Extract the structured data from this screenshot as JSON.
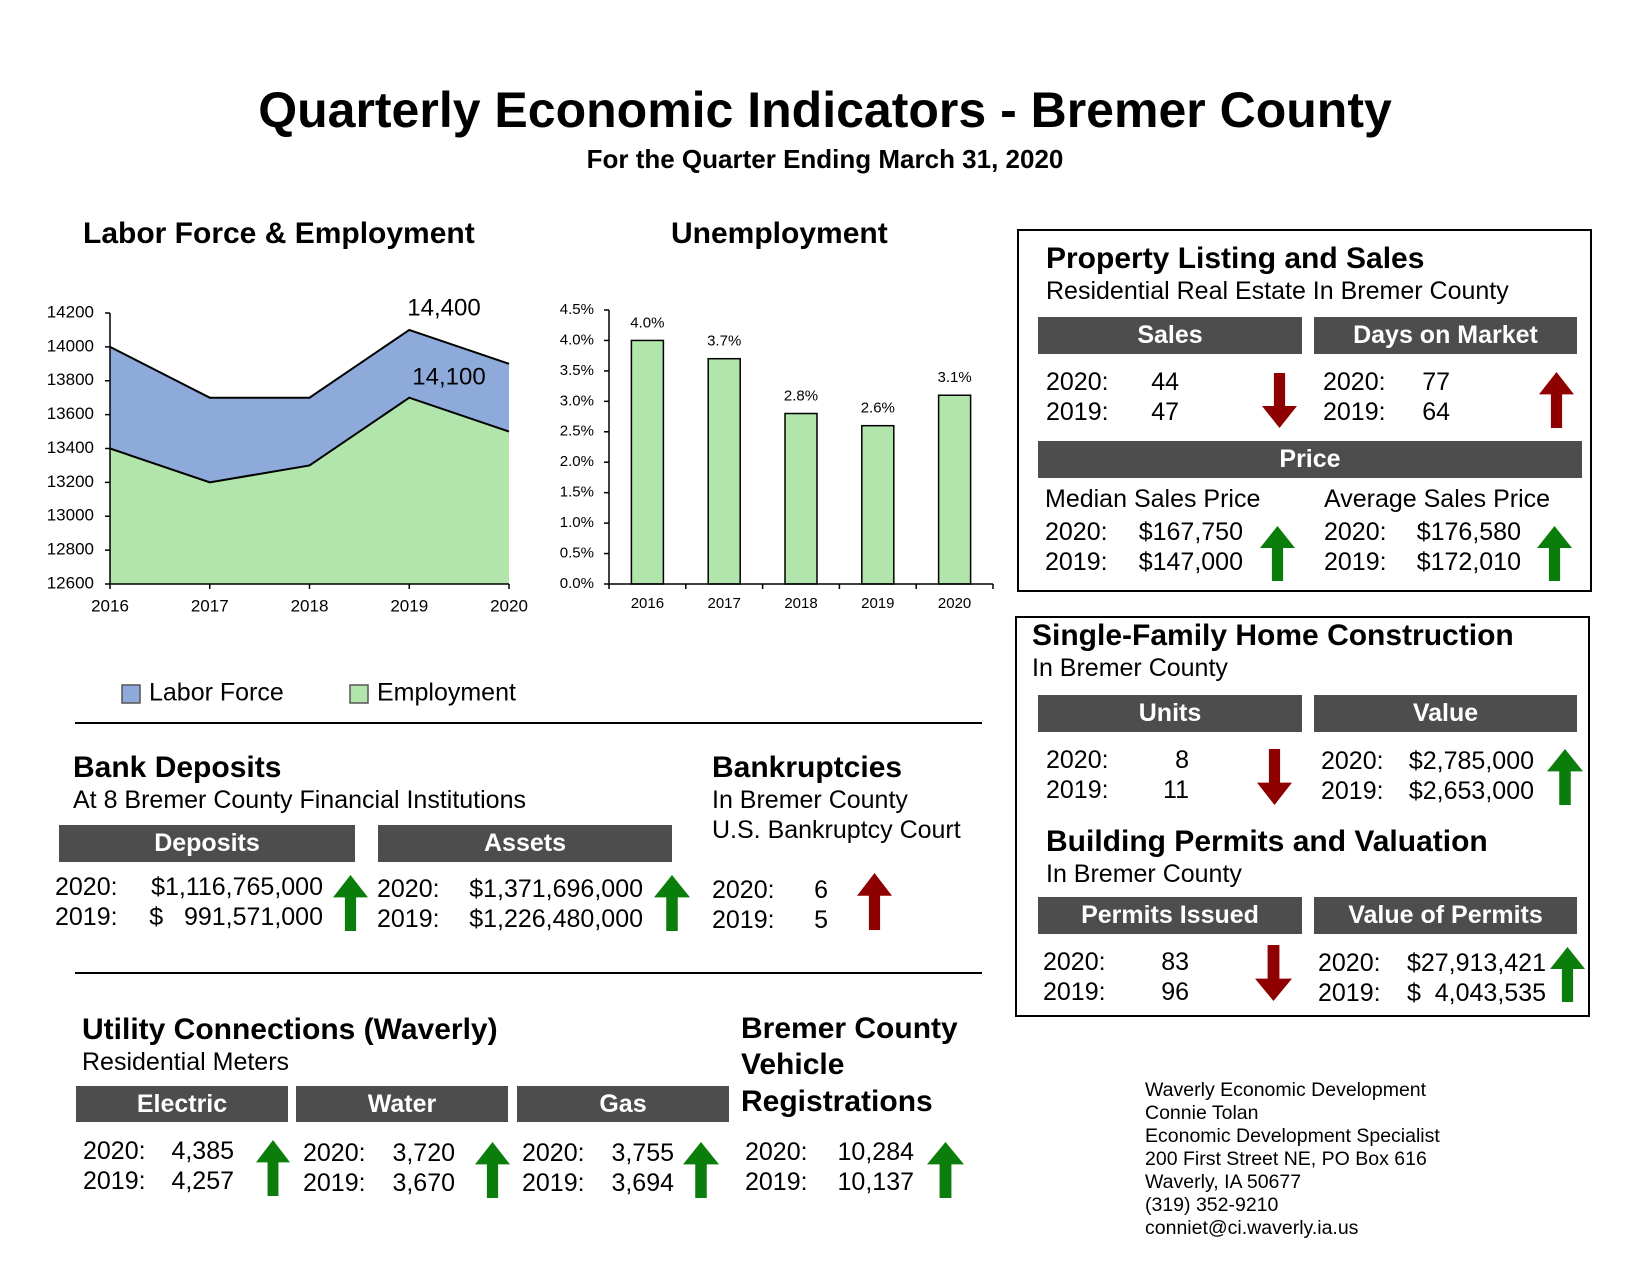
{
  "header": {
    "title": "Quarterly Economic Indicators - Bremer County",
    "subtitle": "For the Quarter Ending March 31, 2020"
  },
  "chart_data": [
    {
      "type": "area",
      "title": "Labor Force & Employment",
      "categories": [
        "2016",
        "2017",
        "2018",
        "2019",
        "2020"
      ],
      "series": [
        {
          "name": "Labor Force",
          "color": "#8eaadb",
          "values": [
            14000,
            13700,
            13700,
            14100,
            13900
          ]
        },
        {
          "name": "Employment",
          "color": "#b1e5ab",
          "values": [
            13400,
            13200,
            13300,
            13700,
            13500
          ]
        }
      ],
      "annotations": [
        "14,400",
        "14,100"
      ],
      "ylim": [
        12600,
        14200
      ],
      "yticks": [
        12600,
        12800,
        13000,
        13200,
        13400,
        13600,
        13800,
        14000,
        14200
      ],
      "grid": false,
      "legend": "bottom"
    },
    {
      "type": "bar",
      "title": "Unemployment",
      "categories": [
        "2016",
        "2017",
        "2018",
        "2019",
        "2020"
      ],
      "values": [
        4.0,
        3.7,
        2.8,
        2.6,
        3.1
      ],
      "value_labels": [
        "4.0%",
        "3.7%",
        "2.8%",
        "2.6%",
        "3.1%"
      ],
      "color": "#b1e5ab",
      "ylim": [
        0,
        4.5
      ],
      "yticks": [
        {
          "value": 0,
          "label": "0.0%"
        },
        {
          "value": 0.5,
          "label": "0.5%"
        },
        {
          "value": 1,
          "label": "1.0%"
        },
        {
          "value": 1.5,
          "label": "1.5%"
        },
        {
          "value": 2,
          "label": "2.0%"
        },
        {
          "value": 2.5,
          "label": "2.5%"
        },
        {
          "value": 3,
          "label": "3.0%"
        },
        {
          "value": 3.5,
          "label": "3.5%"
        },
        {
          "value": 4,
          "label": "4.0%"
        },
        {
          "value": 4.5,
          "label": "4.5%"
        }
      ],
      "grid": false
    }
  ],
  "property": {
    "title": "Property Listing and Sales",
    "subtitle": "Residential Real Estate In Bremer County",
    "sales": {
      "heading": "Sales",
      "rows": [
        {
          "label": "2020:",
          "value": "44"
        },
        {
          "label": "2019:",
          "value": "47"
        }
      ]
    },
    "days": {
      "heading": "Days on Market",
      "rows": [
        {
          "label": "2020:",
          "value": "77"
        },
        {
          "label": "2019:",
          "value": "64"
        }
      ]
    },
    "price_heading": "Price",
    "median": {
      "heading": "Median Sales Price",
      "rows": [
        {
          "label": "2020:",
          "value": "$167,750"
        },
        {
          "label": "2019:",
          "value": "$147,000"
        }
      ]
    },
    "average": {
      "heading": "Average Sales Price",
      "rows": [
        {
          "label": "2020:",
          "value": "$176,580"
        },
        {
          "label": "2019:",
          "value": "$172,010"
        }
      ]
    }
  },
  "construction": {
    "title": "Single-Family Home Construction",
    "subtitle": "In Bremer County",
    "units": {
      "heading": "Units",
      "rows": [
        {
          "label": "2020:",
          "value": "8"
        },
        {
          "label": "2019:",
          "value": "11"
        }
      ]
    },
    "value": {
      "heading": "Value",
      "rows": [
        {
          "label": "2020:",
          "value": "$2,785,000"
        },
        {
          "label": "2019:",
          "value": "$2,653,000"
        }
      ]
    }
  },
  "permits": {
    "title": "Building Permits and Valuation",
    "subtitle": "In Bremer County",
    "issued": {
      "heading": "Permits Issued",
      "rows": [
        {
          "label": "2020:",
          "value": "83"
        },
        {
          "label": "2019:",
          "value": "96"
        }
      ]
    },
    "valuation": {
      "heading": "Value of Permits",
      "rows": [
        {
          "label": "2020:",
          "value": "$27,913,421"
        },
        {
          "label": "2019:",
          "value": "$  4,043,535"
        }
      ]
    }
  },
  "bank_deposits": {
    "title": "Bank Deposits",
    "subtitle": "At 8 Bremer County Financial Institutions",
    "deposits": {
      "heading": "Deposits",
      "rows": [
        {
          "label": "2020:",
          "value": "$1,116,765,000"
        },
        {
          "label": "2019:",
          "value": "$   991,571,000"
        }
      ]
    },
    "assets": {
      "heading": "Assets",
      "rows": [
        {
          "label": "2020:",
          "value": "$1,371,696,000"
        },
        {
          "label": "2019:",
          "value": "$1,226,480,000"
        }
      ]
    }
  },
  "bankruptcies": {
    "title": "Bankruptcies",
    "subtitle_lines": [
      "In Bremer County",
      "U.S. Bankruptcy Court"
    ],
    "rows": [
      {
        "label": "2020:",
        "value": "6"
      },
      {
        "label": "2019:",
        "value": "5"
      }
    ]
  },
  "utility": {
    "title": "Utility Connections (Waverly)",
    "subtitle": "Residential Meters",
    "electric": {
      "heading": "Electric",
      "rows": [
        {
          "label": "2020:",
          "value": "4,385"
        },
        {
          "label": "2019:",
          "value": "4,257"
        }
      ]
    },
    "water": {
      "heading": "Water",
      "rows": [
        {
          "label": "2020:",
          "value": "3,720"
        },
        {
          "label": "2019:",
          "value": "3,670"
        }
      ]
    },
    "gas": {
      "heading": "Gas",
      "rows": [
        {
          "label": "2020:",
          "value": "3,755"
        },
        {
          "label": "2019:",
          "value": "3,694"
        }
      ]
    }
  },
  "vehicles": {
    "title_lines": [
      "Bremer County",
      "Vehicle",
      "Registrations"
    ],
    "rows": [
      {
        "label": "2020:",
        "value": "10,284"
      },
      {
        "label": "2019:",
        "value": "10,137"
      }
    ]
  },
  "contact": {
    "lines": [
      "Waverly Economic Development",
      "Connie Tolan",
      "Economic Development Specialist",
      "200 First Street NE, PO Box 616",
      "Waverly, IA 50677",
      "(319) 352-9210",
      "conniet@ci.waverly.ia.us"
    ]
  }
}
